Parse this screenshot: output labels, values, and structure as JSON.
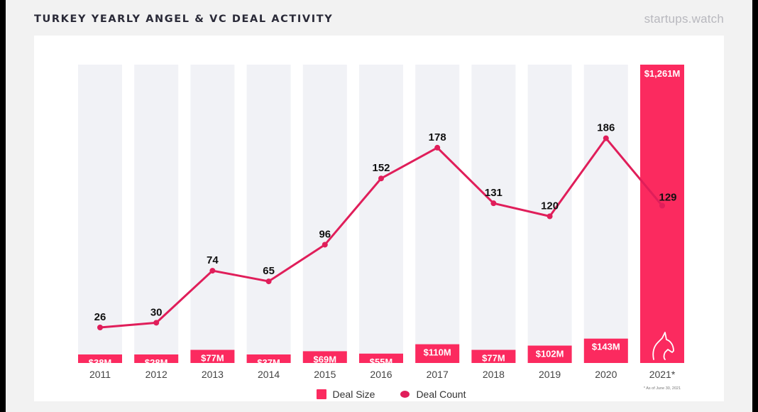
{
  "header": {
    "title": "TURKEY YEARLY ANGEL & VC DEAL ACTIVITY",
    "brand": "startups.watch"
  },
  "colors": {
    "bar": "#fb2a5f",
    "bar_highlight": "#fb2a5f",
    "bar_background": "#f1f2f6",
    "line": "#e01e5a",
    "label_dark": "#111111",
    "label_light": "#ffffff"
  },
  "chart_data": {
    "type": "bar",
    "title": "TURKEY YEARLY ANGEL & VC DEAL ACTIVITY",
    "categories": [
      "2011",
      "2012",
      "2013",
      "2014",
      "2015",
      "2016",
      "2017",
      "2018",
      "2019",
      "2020",
      "2021*"
    ],
    "series": [
      {
        "name": "Deal Size",
        "type": "bar",
        "unit": "$M",
        "values": [
          38,
          28,
          77,
          37,
          69,
          55,
          110,
          77,
          102,
          143,
          1261
        ],
        "labels": [
          "$38M",
          "$28M",
          "$77M",
          "$37M",
          "$69M",
          "$55M",
          "$110M",
          "$77M",
          "$102M",
          "$143M",
          "$1,261M"
        ]
      },
      {
        "name": "Deal Count",
        "type": "line",
        "values": [
          26,
          30,
          74,
          65,
          96,
          152,
          178,
          131,
          120,
          186,
          129
        ],
        "labels": [
          "26",
          "30",
          "74",
          "65",
          "96",
          "152",
          "178",
          "131",
          "120",
          "186",
          "129"
        ]
      }
    ],
    "footnote": "* As of June 30, 2021",
    "grid": false,
    "legend_position": "bottom-center"
  },
  "legend": {
    "items": [
      {
        "label": "Deal Size",
        "marker": "square"
      },
      {
        "label": "Deal Count",
        "marker": "dot"
      }
    ]
  },
  "icons": {
    "unicorn": "unicorn-icon"
  }
}
